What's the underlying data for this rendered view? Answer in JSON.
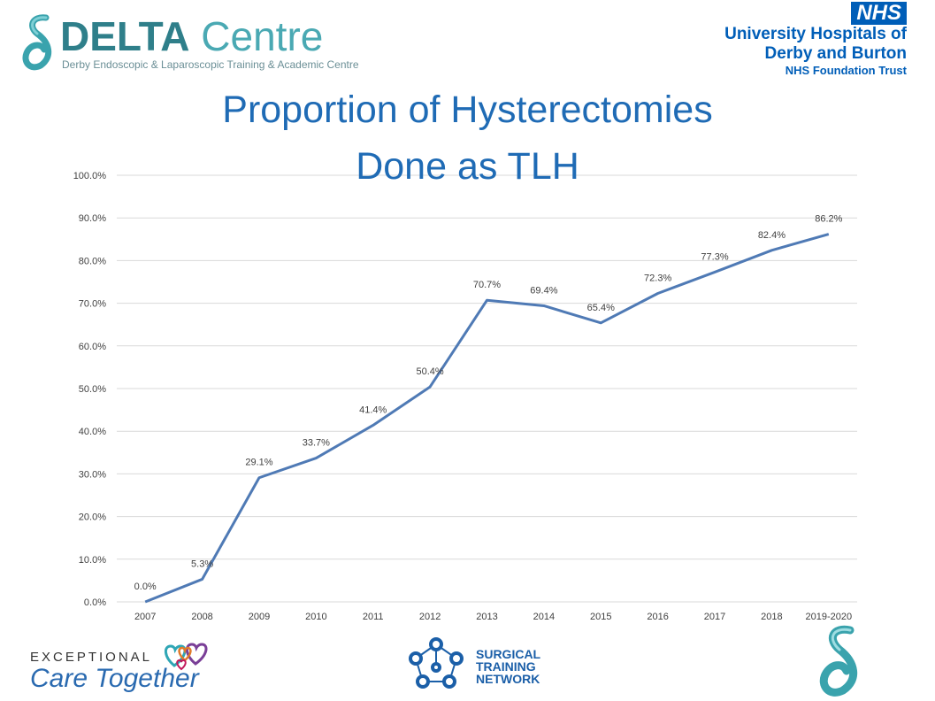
{
  "header": {
    "delta_logo": {
      "brand_bold": "DELTA",
      "brand_light": "Centre",
      "tagline": "Derby Endoscopic & Laparoscopic Training & Academic Centre"
    },
    "nhs_logo": {
      "badge": "NHS",
      "line1": "University Hospitals of",
      "line2": "Derby and Burton",
      "line3": "NHS Foundation Trust"
    }
  },
  "title_line1": "Proportion of Hysterectomies",
  "title_line2": "Done as TLH",
  "chart_data": {
    "type": "line",
    "categories": [
      "2007",
      "2008",
      "2009",
      "2010",
      "2011",
      "2012",
      "2013",
      "2014",
      "2015",
      "2016",
      "2017",
      "2018",
      "2019-2020"
    ],
    "series": [
      {
        "values": [
          0.0,
          5.3,
          29.1,
          33.7,
          41.4,
          50.4,
          70.7,
          69.4,
          65.4,
          72.3,
          77.3,
          82.4,
          86.2
        ]
      }
    ],
    "data_labels": [
      "0.0%",
      "5.3%",
      "29.1%",
      "33.7%",
      "41.4%",
      "50.4%",
      "70.7%",
      "69.4%",
      "65.4%",
      "72.3%",
      "77.3%",
      "82.4%",
      "86.2%"
    ],
    "y_ticks": [
      "0.0%",
      "10.0%",
      "20.0%",
      "30.0%",
      "40.0%",
      "50.0%",
      "60.0%",
      "70.0%",
      "80.0%",
      "90.0%",
      "100.0%"
    ],
    "ylim": [
      0,
      100
    ],
    "grid": true,
    "legend": "none",
    "line_color": "#4f7ab5"
  },
  "footer": {
    "exceptional_top": "EXCEPTIONAL",
    "exceptional_bottom": "Care Together",
    "stn_line1": "SURGICAL",
    "stn_line2": "TRAINING",
    "stn_line3": "NETWORK"
  },
  "colors": {
    "nhs_blue": "#005eb8",
    "title_blue": "#1f6bb5",
    "delta_teal": "#2f7f8a"
  }
}
